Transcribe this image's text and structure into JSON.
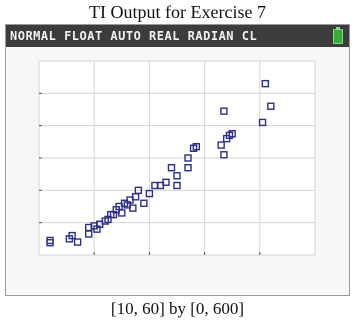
{
  "title": "TI Output for Exercise 7",
  "status_bar": {
    "modes": "NORMAL FLOAT AUTO REAL RADIAN CL",
    "battery_icon": "battery-icon",
    "battery_color": "#35b035"
  },
  "caption": "[10, 60] by [0, 600]",
  "chart_data": {
    "type": "scatter",
    "title": "",
    "xlabel": "",
    "ylabel": "",
    "xlim": [
      10,
      60
    ],
    "ylim": [
      0,
      600
    ],
    "xscale": 10,
    "yscale": 100,
    "grid": true,
    "marker": "square",
    "marker_color": "#2d2d8a",
    "series": [
      {
        "points": [
          [
            12,
            38
          ],
          [
            12,
            45
          ],
          [
            15.5,
            50
          ],
          [
            16,
            60
          ],
          [
            17,
            40
          ],
          [
            19,
            65
          ],
          [
            19,
            85
          ],
          [
            20,
            90
          ],
          [
            20.5,
            80
          ],
          [
            21,
            95
          ],
          [
            22,
            105
          ],
          [
            22.5,
            110
          ],
          [
            23,
            125
          ],
          [
            23.5,
            125
          ],
          [
            24,
            140
          ],
          [
            24.5,
            150
          ],
          [
            25,
            130
          ],
          [
            25.5,
            160
          ],
          [
            26,
            155
          ],
          [
            26.5,
            170
          ],
          [
            27,
            145
          ],
          [
            27.5,
            180
          ],
          [
            28,
            200
          ],
          [
            29,
            160
          ],
          [
            30,
            190
          ],
          [
            31,
            215
          ],
          [
            32,
            215
          ],
          [
            33,
            225
          ],
          [
            34,
            270
          ],
          [
            35,
            215
          ],
          [
            35,
            245
          ],
          [
            37,
            270
          ],
          [
            37,
            300
          ],
          [
            38,
            330
          ],
          [
            38.5,
            335
          ],
          [
            43,
            340
          ],
          [
            43.5,
            310
          ],
          [
            44,
            360
          ],
          [
            44.5,
            370
          ],
          [
            45,
            375
          ],
          [
            43.5,
            445
          ],
          [
            50.5,
            410
          ],
          [
            51,
            530
          ],
          [
            52,
            460
          ]
        ]
      }
    ]
  }
}
